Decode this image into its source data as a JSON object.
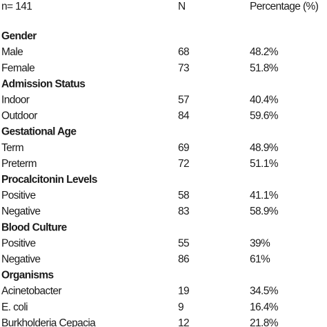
{
  "table": {
    "header": [
      "n= 141",
      "N",
      "Percentage (%)"
    ],
    "sections": [
      {
        "title": "Gender",
        "rows": [
          [
            "Male",
            "68",
            "48.2%"
          ],
          [
            "Female",
            "73",
            "51.8%"
          ]
        ]
      },
      {
        "title": "Admission Status",
        "rows": [
          [
            "Indoor",
            "57",
            "40.4%"
          ],
          [
            "Outdoor",
            "84",
            "59.6%"
          ]
        ]
      },
      {
        "title": "Gestational Age",
        "rows": [
          [
            "Term",
            "69",
            "48.9%"
          ],
          [
            "Preterm",
            "72",
            "51.1%"
          ]
        ]
      },
      {
        "title": "Procalcitonin Levels",
        "rows": [
          [
            "Positive",
            "58",
            "41.1%"
          ],
          [
            "Negative",
            "83",
            "58.9%"
          ]
        ]
      },
      {
        "title": "Blood Culture",
        "rows": [
          [
            "Positive",
            "55",
            "39%"
          ],
          [
            "Negative",
            "86",
            "61%"
          ]
        ]
      },
      {
        "title": "Organisms",
        "rows": [
          [
            "Acinetobacter",
            "19",
            "34.5%"
          ],
          [
            "E. coli",
            "9",
            "16.4%"
          ],
          [
            "Burkholderia Cepacia",
            "12",
            "21.8%"
          ]
        ]
      }
    ]
  }
}
